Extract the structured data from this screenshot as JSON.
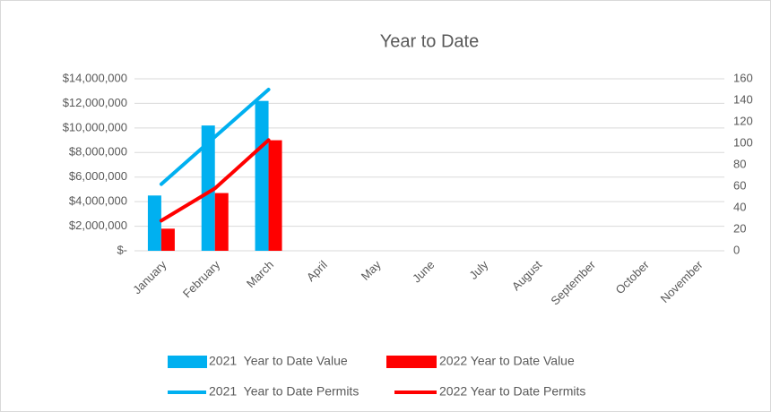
{
  "chart_data": {
    "type": "bar-line",
    "title": "Year to Date",
    "categories": [
      "January",
      "February",
      "March",
      "April",
      "May",
      "June",
      "July",
      "August",
      "September",
      "October",
      "November"
    ],
    "series": [
      {
        "name": "2021  Year to Date Value",
        "type": "bar",
        "color": "#00b0f0",
        "values": [
          4500000,
          10200000,
          12200000,
          null,
          null,
          null,
          null,
          null,
          null,
          null,
          null
        ]
      },
      {
        "name": "2022 Year to Date Value",
        "type": "bar",
        "color": "#ff0000",
        "values": [
          1800000,
          4700000,
          9000000,
          null,
          null,
          null,
          null,
          null,
          null,
          null,
          null
        ]
      },
      {
        "name": "2021  Year to Date Permits",
        "type": "line",
        "axis": "y2",
        "color": "#00b0f0",
        "values": [
          62,
          106,
          150,
          null,
          null,
          null,
          null,
          null,
          null,
          null,
          null
        ]
      },
      {
        "name": "2022 Year to Date Permits",
        "type": "line",
        "axis": "y2",
        "color": "#ff0000",
        "values": [
          28,
          58,
          103,
          null,
          null,
          null,
          null,
          null,
          null,
          null,
          null
        ]
      }
    ],
    "ylim": [
      0,
      14000000
    ],
    "yticks": [
      {
        "value": 0,
        "label": "$-"
      },
      {
        "value": 2000000,
        "label": "$2,000,000"
      },
      {
        "value": 4000000,
        "label": "$4,000,000"
      },
      {
        "value": 6000000,
        "label": "$6,000,000"
      },
      {
        "value": 8000000,
        "label": "$8,000,000"
      },
      {
        "value": 10000000,
        "label": "$10,000,000"
      },
      {
        "value": 12000000,
        "label": "$12,000,000"
      },
      {
        "value": 14000000,
        "label": "$14,000,000"
      }
    ],
    "y2lim": [
      0,
      160
    ],
    "y2ticks": [
      0,
      20,
      40,
      60,
      80,
      100,
      120,
      140,
      160
    ],
    "grid": true,
    "legend": "bottom"
  }
}
